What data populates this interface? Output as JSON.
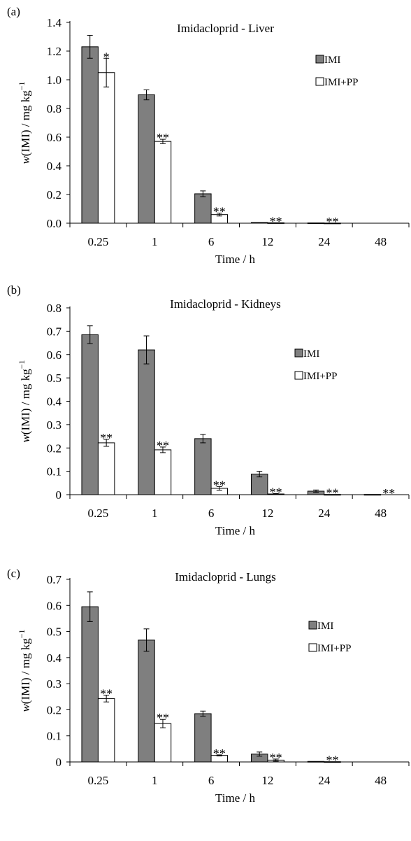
{
  "colors": {
    "imi": "#7f7f7f",
    "imi_pp": "#ffffff",
    "stroke": "#000000"
  },
  "chart_data": [
    {
      "type": "bar",
      "panel_label": "(a)",
      "title": "Imidacloprid - Liver",
      "xlabel": "Time / h",
      "ylabel_base": "w(IMI) / mg kg",
      "ylabel_sup": "−1",
      "ylim": [
        0,
        1.4
      ],
      "yticks": [
        "0.0",
        "0.2",
        "0.4",
        "0.6",
        "0.8",
        "1.0",
        "1.2",
        "1.4"
      ],
      "categories": [
        "0.25",
        "1",
        "6",
        "12",
        "24",
        "48"
      ],
      "legend_position": "top-right",
      "series": [
        {
          "name": "IMI",
          "values": [
            1.23,
            0.895,
            0.205,
            0.005,
            0.002,
            0
          ],
          "errors": [
            0.08,
            0.035,
            0.02,
            0,
            0,
            0
          ],
          "sig": [
            "",
            "",
            "",
            "",
            "",
            ""
          ]
        },
        {
          "name": "IMI+PP",
          "values": [
            1.05,
            0.57,
            0.06,
            0.003,
            0.001,
            0
          ],
          "errors": [
            0.1,
            0.015,
            0.01,
            0,
            0,
            0
          ],
          "sig": [
            "*",
            "**",
            "**",
            "**",
            "**",
            ""
          ]
        }
      ]
    },
    {
      "type": "bar",
      "panel_label": "(b)",
      "title": "Imidacloprid - Kidneys",
      "xlabel": "Time / h",
      "ylabel_base": "w(IMI) / mg kg",
      "ylabel_sup": "−1",
      "ylim": [
        0,
        0.8
      ],
      "yticks": [
        "0",
        "0.1",
        "0.2",
        "0.3",
        "0.4",
        "0.5",
        "0.6",
        "0.7",
        "0.8"
      ],
      "categories": [
        "0.25",
        "1",
        "6",
        "12",
        "24",
        "48"
      ],
      "legend_position": "right",
      "series": [
        {
          "name": "IMI",
          "values": [
            0.685,
            0.62,
            0.24,
            0.088,
            0.015,
            0.001
          ],
          "errors": [
            0.038,
            0.06,
            0.018,
            0.012,
            0.005,
            0
          ],
          "sig": [
            "",
            "",
            "",
            "",
            "",
            ""
          ]
        },
        {
          "name": "IMI+PP",
          "values": [
            0.222,
            0.192,
            0.027,
            0.003,
            0.001,
            0
          ],
          "errors": [
            0.015,
            0.012,
            0.008,
            0.002,
            0,
            0
          ],
          "sig": [
            "**",
            "**",
            "**",
            "**",
            "**",
            "**"
          ]
        }
      ]
    },
    {
      "type": "bar",
      "panel_label": "(c)",
      "title": "Imidacloprid - Lungs",
      "xlabel": "Time / h",
      "ylabel_base": "w(IMI) / mg kg",
      "ylabel_sup": "−1",
      "ylim": [
        0,
        0.7
      ],
      "yticks": [
        "0",
        "0.1",
        "0.2",
        "0.3",
        "0.4",
        "0.5",
        "0.6",
        "0.7"
      ],
      "categories": [
        "0.25",
        "1",
        "6",
        "12",
        "24",
        "48"
      ],
      "legend_position": "right",
      "series": [
        {
          "name": "IMI",
          "values": [
            0.595,
            0.467,
            0.185,
            0.03,
            0.002,
            0
          ],
          "errors": [
            0.057,
            0.043,
            0.01,
            0.008,
            0,
            0
          ],
          "sig": [
            "",
            "",
            "",
            "",
            "",
            ""
          ]
        },
        {
          "name": "IMI+PP",
          "values": [
            0.243,
            0.147,
            0.025,
            0.007,
            0.001,
            0
          ],
          "errors": [
            0.013,
            0.016,
            0.002,
            0.004,
            0,
            0
          ],
          "sig": [
            "**",
            "**",
            "**",
            "**",
            "**",
            ""
          ]
        }
      ]
    }
  ]
}
